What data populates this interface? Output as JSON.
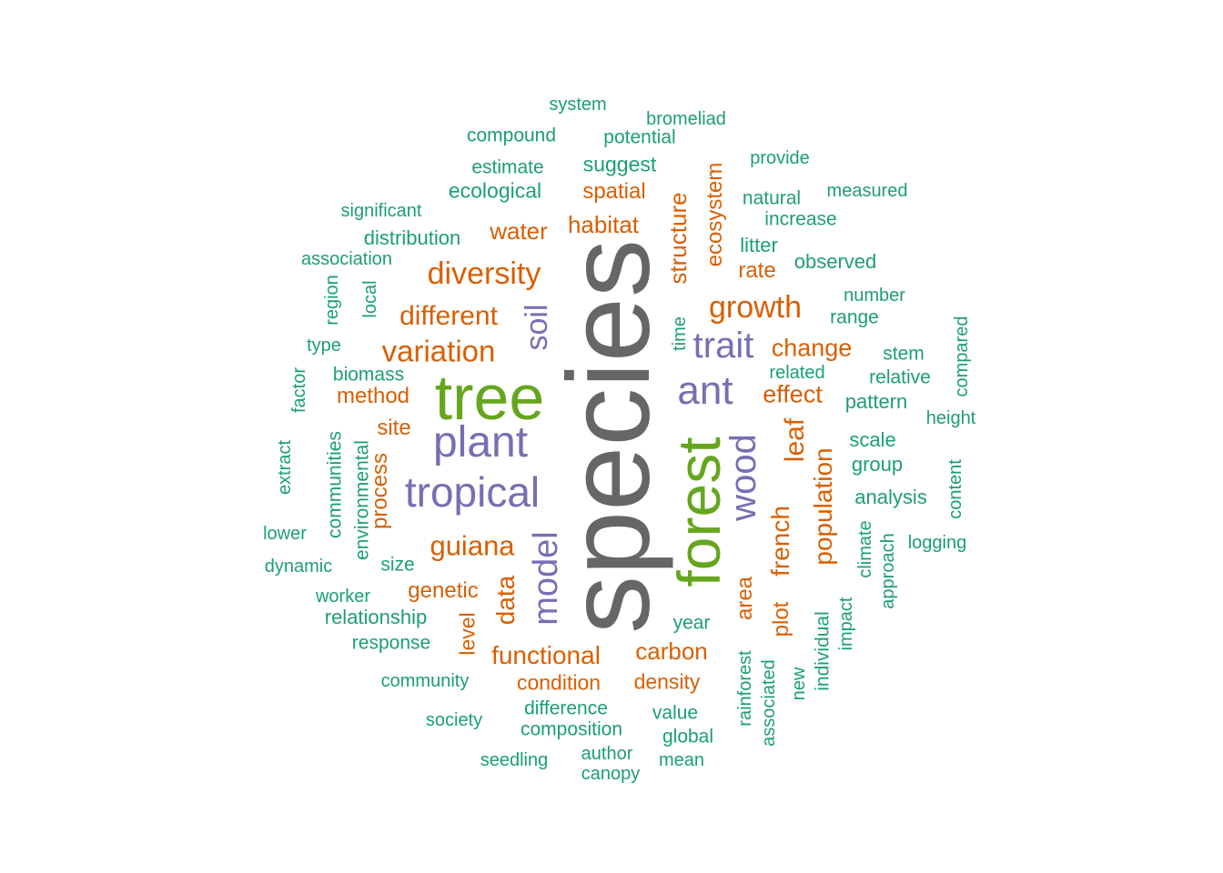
{
  "colors": {
    "c1": "#1B9E77",
    "c2": "#D95F02",
    "c3": "#7570B3",
    "c4": "#66A61E",
    "c5": "#666666"
  },
  "words": [
    {
      "text": "species",
      "color": "c5"
    },
    {
      "text": "tree",
      "color": "c4"
    },
    {
      "text": "forest",
      "color": "c4"
    },
    {
      "text": "plant",
      "color": "c3"
    },
    {
      "text": "tropical",
      "color": "c3"
    },
    {
      "text": "ant",
      "color": "c3"
    },
    {
      "text": "trait",
      "color": "c3"
    },
    {
      "text": "wood",
      "color": "c3"
    },
    {
      "text": "soil",
      "color": "c3"
    },
    {
      "text": "model",
      "color": "c3"
    },
    {
      "text": "diversity",
      "color": "c2"
    },
    {
      "text": "variation",
      "color": "c2"
    },
    {
      "text": "growth",
      "color": "c2"
    },
    {
      "text": "guiana",
      "color": "c2"
    },
    {
      "text": "different",
      "color": "c2"
    },
    {
      "text": "change",
      "color": "c2"
    },
    {
      "text": "effect",
      "color": "c2"
    },
    {
      "text": "functional",
      "color": "c2"
    },
    {
      "text": "carbon",
      "color": "c2"
    },
    {
      "text": "habitat",
      "color": "c2"
    },
    {
      "text": "water",
      "color": "c2"
    },
    {
      "text": "spatial",
      "color": "c2"
    },
    {
      "text": "method",
      "color": "c2"
    },
    {
      "text": "site",
      "color": "c2"
    },
    {
      "text": "genetic",
      "color": "c2"
    },
    {
      "text": "condition",
      "color": "c2"
    },
    {
      "text": "density",
      "color": "c2"
    },
    {
      "text": "rate",
      "color": "c2"
    },
    {
      "text": "structure",
      "color": "c2"
    },
    {
      "text": "ecosystem",
      "color": "c2"
    },
    {
      "text": "french",
      "color": "c2"
    },
    {
      "text": "leaf",
      "color": "c2"
    },
    {
      "text": "population",
      "color": "c2"
    },
    {
      "text": "data",
      "color": "c2"
    },
    {
      "text": "area",
      "color": "c2"
    },
    {
      "text": "plot",
      "color": "c2"
    },
    {
      "text": "process",
      "color": "c2"
    },
    {
      "text": "level",
      "color": "c2"
    },
    {
      "text": "system",
      "color": "c1"
    },
    {
      "text": "bromeliad",
      "color": "c1"
    },
    {
      "text": "compound",
      "color": "c1"
    },
    {
      "text": "potential",
      "color": "c1"
    },
    {
      "text": "suggest",
      "color": "c1"
    },
    {
      "text": "estimate",
      "color": "c1"
    },
    {
      "text": "provide",
      "color": "c1"
    },
    {
      "text": "ecological",
      "color": "c1"
    },
    {
      "text": "measured",
      "color": "c1"
    },
    {
      "text": "natural",
      "color": "c1"
    },
    {
      "text": "significant",
      "color": "c1"
    },
    {
      "text": "increase",
      "color": "c1"
    },
    {
      "text": "distribution",
      "color": "c1"
    },
    {
      "text": "litter",
      "color": "c1"
    },
    {
      "text": "association",
      "color": "c1"
    },
    {
      "text": "observed",
      "color": "c1"
    },
    {
      "text": "number",
      "color": "c1"
    },
    {
      "text": "range",
      "color": "c1"
    },
    {
      "text": "type",
      "color": "c1"
    },
    {
      "text": "stem",
      "color": "c1"
    },
    {
      "text": "biomass",
      "color": "c1"
    },
    {
      "text": "related",
      "color": "c1"
    },
    {
      "text": "relative",
      "color": "c1"
    },
    {
      "text": "pattern",
      "color": "c1"
    },
    {
      "text": "height",
      "color": "c1"
    },
    {
      "text": "scale",
      "color": "c1"
    },
    {
      "text": "group",
      "color": "c1"
    },
    {
      "text": "analysis",
      "color": "c1"
    },
    {
      "text": "lower",
      "color": "c1"
    },
    {
      "text": "logging",
      "color": "c1"
    },
    {
      "text": "dynamic",
      "color": "c1"
    },
    {
      "text": "size",
      "color": "c1"
    },
    {
      "text": "worker",
      "color": "c1"
    },
    {
      "text": "relationship",
      "color": "c1"
    },
    {
      "text": "year",
      "color": "c1"
    },
    {
      "text": "response",
      "color": "c1"
    },
    {
      "text": "community",
      "color": "c1"
    },
    {
      "text": "difference",
      "color": "c1"
    },
    {
      "text": "value",
      "color": "c1"
    },
    {
      "text": "society",
      "color": "c1"
    },
    {
      "text": "composition",
      "color": "c1"
    },
    {
      "text": "global",
      "color": "c1"
    },
    {
      "text": "seedling",
      "color": "c1"
    },
    {
      "text": "author",
      "color": "c1"
    },
    {
      "text": "mean",
      "color": "c1"
    },
    {
      "text": "canopy",
      "color": "c1"
    },
    {
      "text": "region",
      "color": "c1"
    },
    {
      "text": "local",
      "color": "c1"
    },
    {
      "text": "time",
      "color": "c1"
    },
    {
      "text": "factor",
      "color": "c1"
    },
    {
      "text": "extract",
      "color": "c1"
    },
    {
      "text": "communities",
      "color": "c1"
    },
    {
      "text": "environmental",
      "color": "c1"
    },
    {
      "text": "compared",
      "color": "c1"
    },
    {
      "text": "content",
      "color": "c1"
    },
    {
      "text": "climate",
      "color": "c1"
    },
    {
      "text": "approach",
      "color": "c1"
    },
    {
      "text": "impact",
      "color": "c1"
    },
    {
      "text": "individual",
      "color": "c1"
    },
    {
      "text": "new",
      "color": "c1"
    },
    {
      "text": "associated",
      "color": "c1"
    },
    {
      "text": "rainforest",
      "color": "c1"
    }
  ]
}
